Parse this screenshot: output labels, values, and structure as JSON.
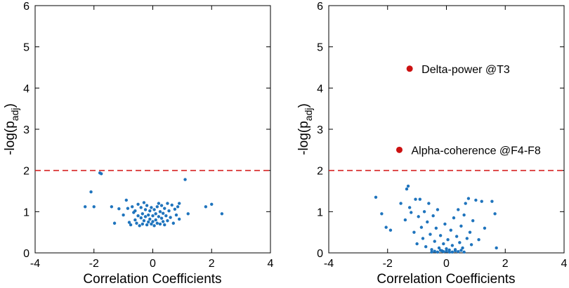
{
  "colors": {
    "points": "#1f74bd",
    "highlight": "#cc1111",
    "threshold": "#d62020"
  },
  "chart_data": [
    {
      "type": "scatter",
      "title": "",
      "xlabel": "Correlation Coefficients",
      "ylabel": {
        "main": "-log(p",
        "sub": "adj",
        "close": ")"
      },
      "xlim": [
        -4,
        4
      ],
      "ylim": [
        0,
        6
      ],
      "xticks": [
        "-4",
        "-2",
        "0",
        "2",
        "4"
      ],
      "yticks": [
        "0",
        "1",
        "2",
        "3",
        "4",
        "5",
        "6"
      ],
      "threshold": 2,
      "points": [
        [
          -2.3,
          1.12
        ],
        [
          -2.1,
          1.48
        ],
        [
          -2.0,
          1.12
        ],
        [
          -1.8,
          1.94
        ],
        [
          -1.75,
          1.92
        ],
        [
          -1.4,
          1.12
        ],
        [
          -1.3,
          0.72
        ],
        [
          -1.15,
          1.07
        ],
        [
          -1.0,
          0.92
        ],
        [
          -0.9,
          1.28
        ],
        [
          -0.85,
          1.08
        ],
        [
          -0.8,
          0.74
        ],
        [
          -0.75,
          0.68
        ],
        [
          -0.7,
          1.12
        ],
        [
          -0.65,
          0.98
        ],
        [
          -0.6,
          1.02
        ],
        [
          -0.6,
          0.8
        ],
        [
          -0.55,
          0.72
        ],
        [
          -0.5,
          1.18
        ],
        [
          -0.5,
          0.9
        ],
        [
          -0.45,
          0.66
        ],
        [
          -0.4,
          1.1
        ],
        [
          -0.4,
          0.85
        ],
        [
          -0.35,
          0.95
        ],
        [
          -0.35,
          0.7
        ],
        [
          -0.3,
          1.22
        ],
        [
          -0.3,
          0.78
        ],
        [
          -0.25,
          1.05
        ],
        [
          -0.25,
          0.88
        ],
        [
          -0.2,
          0.68
        ],
        [
          -0.2,
          1.15
        ],
        [
          -0.15,
          0.92
        ],
        [
          -0.15,
          0.75
        ],
        [
          -0.1,
          1.02
        ],
        [
          -0.1,
          0.82
        ],
        [
          -0.05,
          0.7
        ],
        [
          -0.05,
          1.1
        ],
        [
          0.0,
          0.9
        ],
        [
          0.0,
          0.76
        ],
        [
          0.05,
          1.05
        ],
        [
          0.05,
          0.66
        ],
        [
          0.1,
          0.95
        ],
        [
          0.1,
          0.8
        ],
        [
          0.15,
          1.12
        ],
        [
          0.15,
          0.72
        ],
        [
          0.2,
          0.88
        ],
        [
          0.2,
          1.2
        ],
        [
          0.25,
          0.7
        ],
        [
          0.25,
          1.0
        ],
        [
          0.3,
          0.84
        ],
        [
          0.3,
          1.15
        ],
        [
          0.35,
          0.76
        ],
        [
          0.35,
          0.96
        ],
        [
          0.4,
          1.08
        ],
        [
          0.4,
          0.68
        ],
        [
          0.45,
          0.9
        ],
        [
          0.5,
          1.2
        ],
        [
          0.5,
          0.78
        ],
        [
          0.55,
          1.02
        ],
        [
          0.6,
          0.86
        ],
        [
          0.65,
          1.16
        ],
        [
          0.7,
          0.72
        ],
        [
          0.75,
          1.06
        ],
        [
          0.8,
          0.92
        ],
        [
          0.85,
          1.12
        ],
        [
          0.9,
          0.82
        ],
        [
          0.9,
          1.2
        ],
        [
          1.1,
          1.78
        ],
        [
          1.2,
          0.95
        ],
        [
          1.8,
          1.12
        ],
        [
          2.0,
          1.18
        ],
        [
          2.35,
          0.95
        ]
      ]
    },
    {
      "type": "scatter",
      "title": "",
      "xlabel": "Correlation Coefficients",
      "ylabel": {
        "main": "-log(p",
        "sub": "adj",
        "close": ")"
      },
      "xlim": [
        -4,
        4
      ],
      "ylim": [
        0,
        6
      ],
      "xticks": [
        "-4",
        "-2",
        "0",
        "2",
        "4"
      ],
      "yticks": [
        "0",
        "1",
        "2",
        "3",
        "4",
        "5",
        "6"
      ],
      "threshold": 2,
      "points": [
        [
          -2.4,
          1.35
        ],
        [
          -2.2,
          0.95
        ],
        [
          -2.05,
          0.62
        ],
        [
          -1.9,
          0.55
        ],
        [
          -1.55,
          1.2
        ],
        [
          -1.4,
          0.8
        ],
        [
          -1.35,
          1.55
        ],
        [
          -1.3,
          1.62
        ],
        [
          -1.25,
          1.1
        ],
        [
          -1.2,
          0.98
        ],
        [
          -1.1,
          0.5
        ],
        [
          -1.05,
          1.3
        ],
        [
          -1.0,
          0.22
        ],
        [
          -0.95,
          0.88
        ],
        [
          -0.9,
          1.3
        ],
        [
          -0.85,
          0.62
        ],
        [
          -0.8,
          0.35
        ],
        [
          -0.75,
          1.0
        ],
        [
          -0.7,
          0.15
        ],
        [
          -0.65,
          0.75
        ],
        [
          -0.6,
          1.2
        ],
        [
          -0.55,
          0.45
        ],
        [
          -0.5,
          0.08
        ],
        [
          -0.45,
          0.9
        ],
        [
          -0.4,
          0.28
        ],
        [
          -0.35,
          0.6
        ],
        [
          -0.3,
          1.05
        ],
        [
          -0.25,
          0.12
        ],
        [
          -0.2,
          0.42
        ],
        [
          -0.15,
          0.05
        ],
        [
          -0.1,
          0.22
        ],
        [
          -0.05,
          0.7
        ],
        [
          0.0,
          0.1
        ],
        [
          0.05,
          0.32
        ],
        [
          0.1,
          0.02
        ],
        [
          0.15,
          0.55
        ],
        [
          0.2,
          0.18
        ],
        [
          0.25,
          0.85
        ],
        [
          0.3,
          0.08
        ],
        [
          0.35,
          0.4
        ],
        [
          0.4,
          1.05
        ],
        [
          0.45,
          0.25
        ],
        [
          0.5,
          0.65
        ],
        [
          0.55,
          0.12
        ],
        [
          0.6,
          0.92
        ],
        [
          0.65,
          1.2
        ],
        [
          0.7,
          0.35
        ],
        [
          0.75,
          1.32
        ],
        [
          0.8,
          0.5
        ],
        [
          0.85,
          0.2
        ],
        [
          0.9,
          0.78
        ],
        [
          1.0,
          1.28
        ],
        [
          1.1,
          0.32
        ],
        [
          1.2,
          1.25
        ],
        [
          1.3,
          0.6
        ],
        [
          1.55,
          1.25
        ],
        [
          1.65,
          0.95
        ],
        [
          1.7,
          0.12
        ],
        [
          -0.3,
          0.02
        ],
        [
          -0.2,
          0.06
        ],
        [
          -0.1,
          0.03
        ],
        [
          0.0,
          0.04
        ],
        [
          0.1,
          0.07
        ],
        [
          0.2,
          0.02
        ],
        [
          0.3,
          0.05
        ],
        [
          0.4,
          0.03
        ],
        [
          0.5,
          0.06
        ],
        [
          -0.4,
          0.04
        ],
        [
          -0.5,
          0.02
        ],
        [
          0.6,
          0.02
        ]
      ],
      "highlights": [
        {
          "x": -1.25,
          "y": 4.47,
          "label": "Delta-power @T3"
        },
        {
          "x": -1.6,
          "y": 2.5,
          "label": "Alpha-coherence @F4-F8"
        }
      ]
    }
  ]
}
